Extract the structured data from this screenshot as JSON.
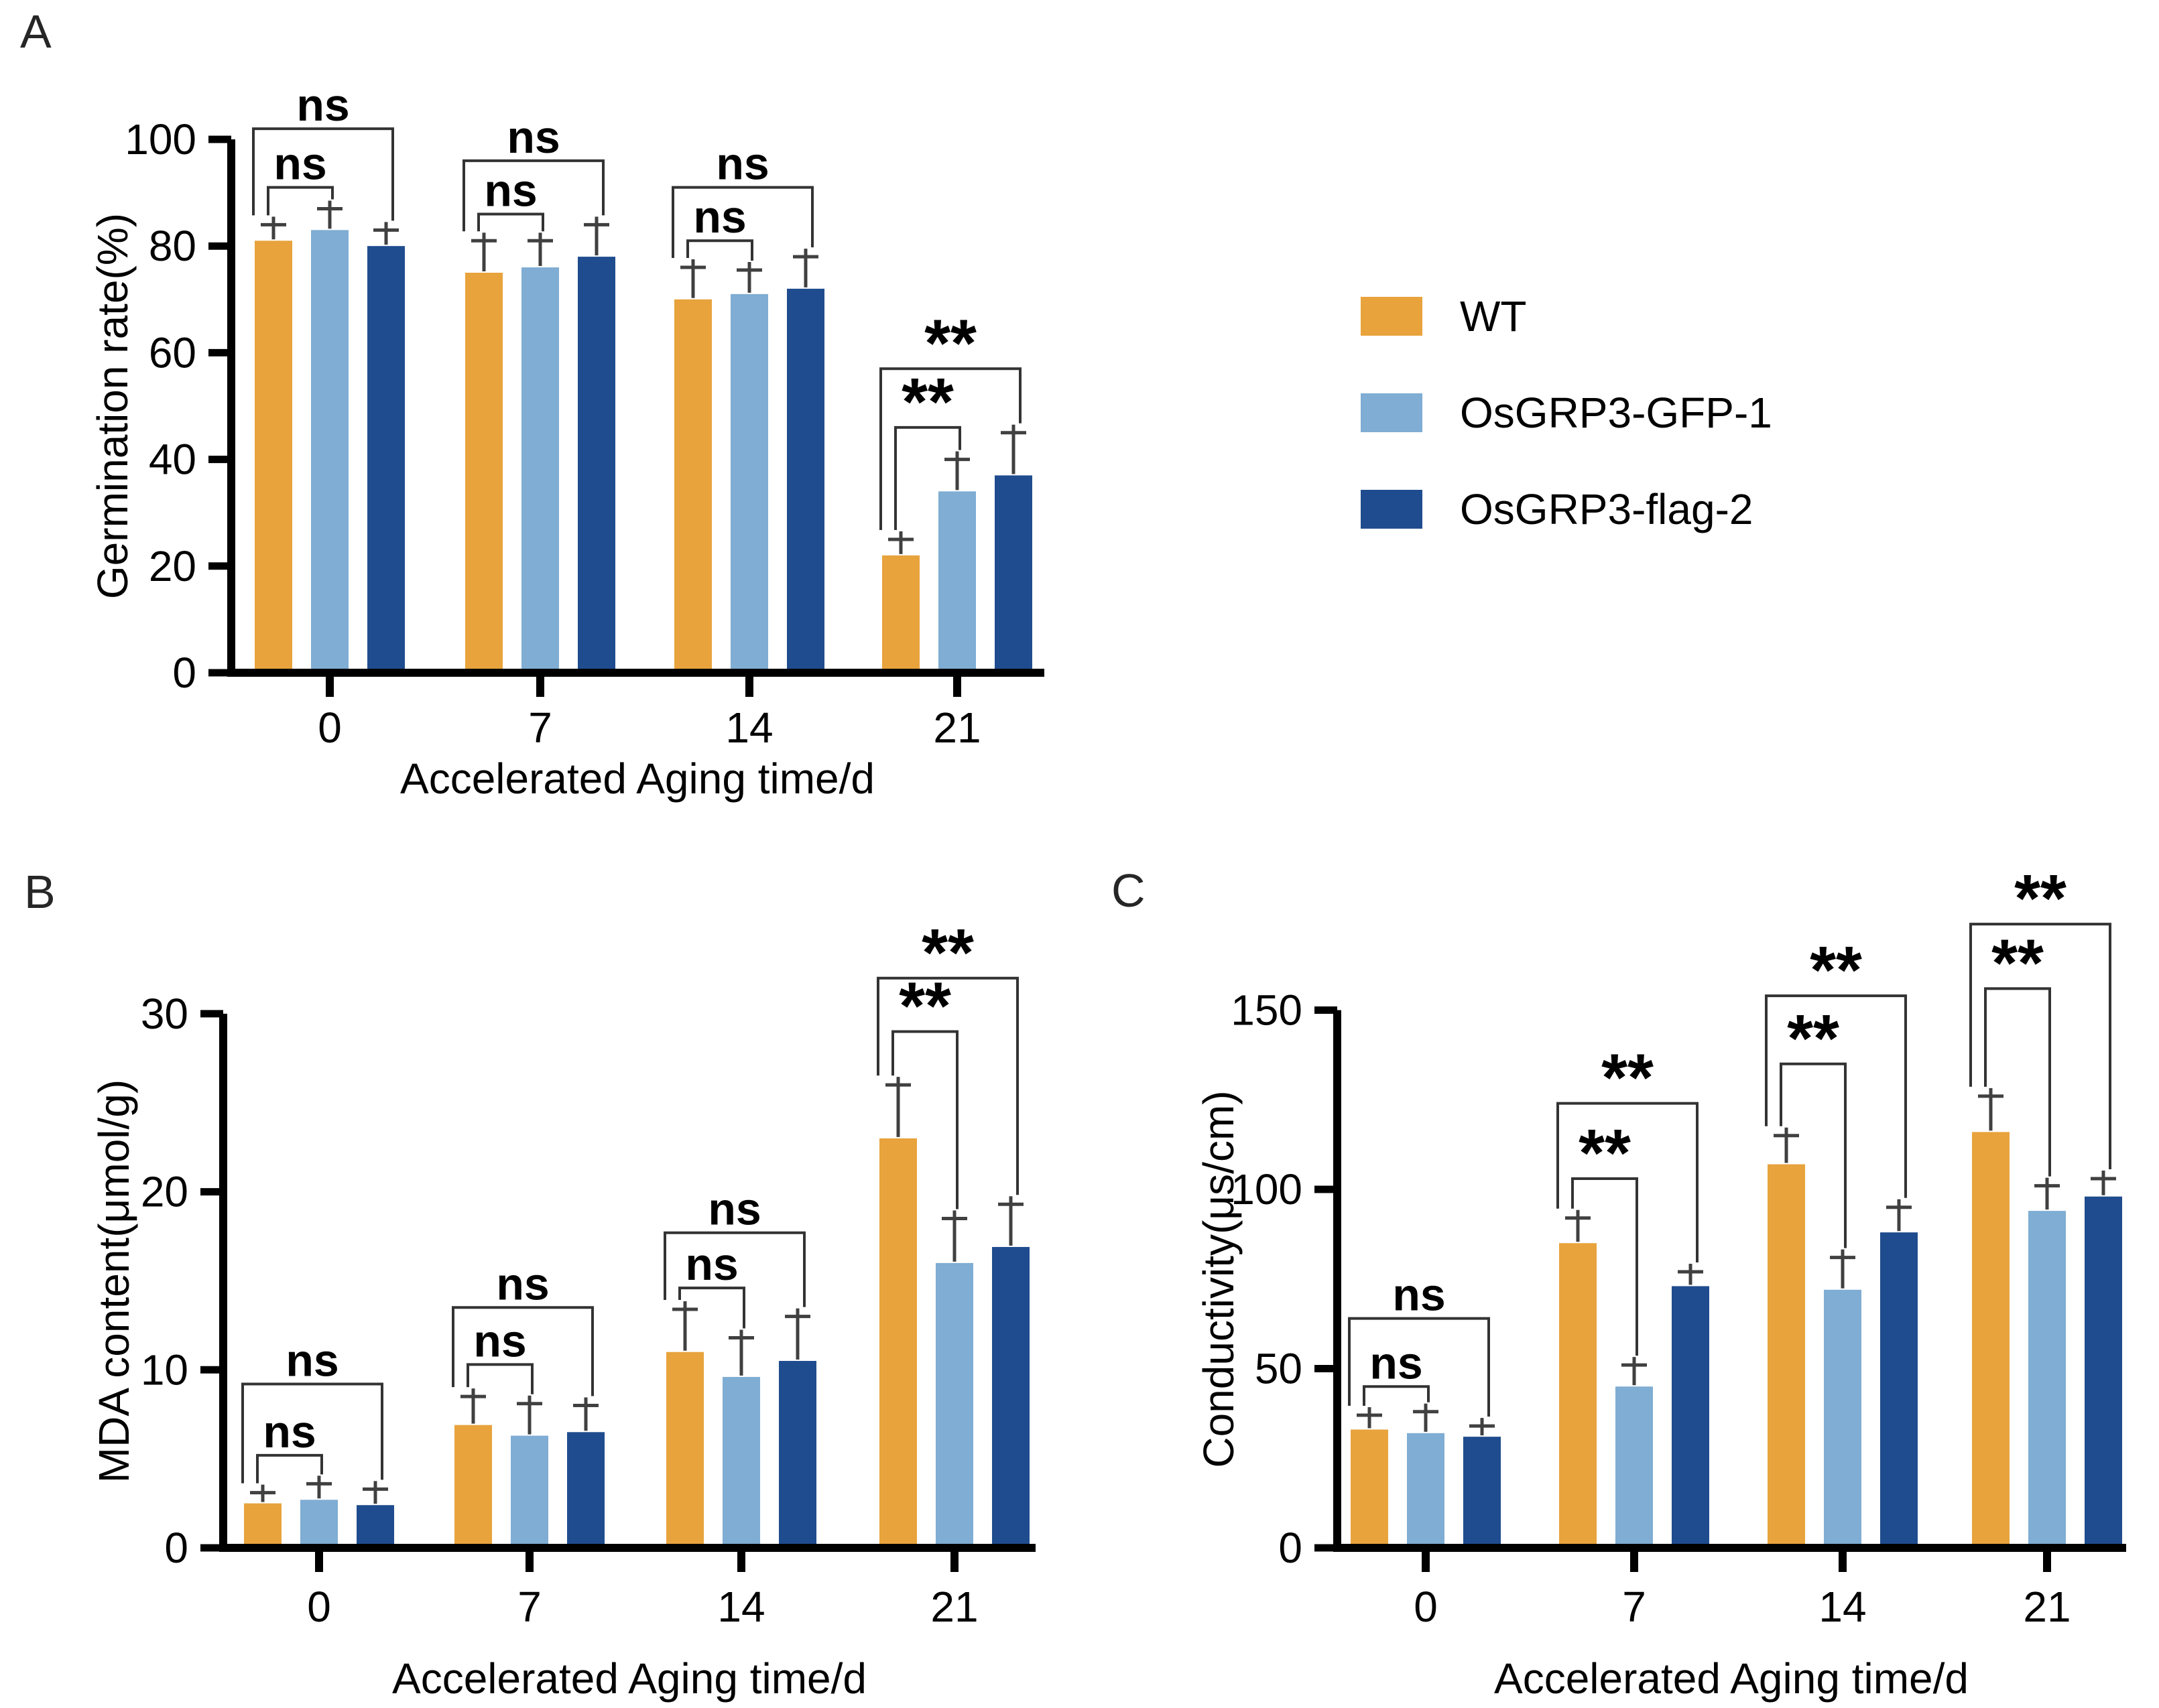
{
  "figure": {
    "panels": [
      {
        "letter": "A"
      },
      {
        "letter": "B"
      },
      {
        "letter": "C"
      }
    ]
  },
  "legend": {
    "items": [
      {
        "label": "WT",
        "color": "#E8A33C"
      },
      {
        "label": "OsGRP3-GFP-1",
        "color": "#7FADD3"
      },
      {
        "label": "OsGRP3-flag-2",
        "color": "#1F4C8E"
      }
    ]
  },
  "colors": {
    "axis": "#000000",
    "error_bar": "#404040",
    "bracket": "#333333",
    "text": "#000000"
  },
  "chart_data": [
    {
      "panel": "A",
      "type": "bar",
      "title": "",
      "xlabel": "Accelerated Aging time/d",
      "ylabel": "Germination rate(%)",
      "categories": [
        "0",
        "7",
        "14",
        "21"
      ],
      "y_ticks": [
        0,
        20,
        40,
        60,
        80,
        100
      ],
      "ylim": [
        0,
        100
      ],
      "grid": false,
      "series": [
        {
          "name": "WT",
          "values": [
            81,
            75,
            70,
            22
          ],
          "errors": [
            3,
            6,
            6,
            3
          ]
        },
        {
          "name": "OsGRP3-GFP-1",
          "values": [
            83,
            76,
            71,
            34
          ],
          "errors": [
            4,
            5,
            4.5,
            6
          ]
        },
        {
          "name": "OsGRP3-flag-2",
          "values": [
            80,
            78,
            72,
            37
          ],
          "errors": [
            3,
            6,
            6,
            8
          ]
        }
      ],
      "significance": [
        {
          "category": "0",
          "wt_vs_gfp": {
            "label": "ns",
            "line_y": 91
          },
          "wt_vs_flag": {
            "label": "ns",
            "line_y": 102
          }
        },
        {
          "category": "7",
          "wt_vs_gfp": {
            "label": "ns",
            "line_y": 86
          },
          "wt_vs_flag": {
            "label": "ns",
            "line_y": 96
          }
        },
        {
          "category": "14",
          "wt_vs_gfp": {
            "label": "ns",
            "line_y": 81
          },
          "wt_vs_flag": {
            "label": "ns",
            "line_y": 91
          }
        },
        {
          "category": "21",
          "wt_vs_gfp": {
            "label": "**",
            "line_y": 46
          },
          "wt_vs_flag": {
            "label": "**",
            "line_y": 57
          }
        }
      ]
    },
    {
      "panel": "B",
      "type": "bar",
      "title": "",
      "xlabel": "Accelerated Aging time/d",
      "ylabel": "MDA content(μmol/g)",
      "categories": [
        "0",
        "7",
        "14",
        "21"
      ],
      "y_ticks": [
        0,
        10,
        20,
        30
      ],
      "ylim": [
        0,
        30
      ],
      "grid": false,
      "series": [
        {
          "name": "WT",
          "values": [
            2.5,
            6.9,
            11,
            23
          ],
          "errors": [
            0.6,
            1.6,
            2.4,
            3
          ]
        },
        {
          "name": "OsGRP3-GFP-1",
          "values": [
            2.7,
            6.3,
            9.6,
            16
          ],
          "errors": [
            0.9,
            1.8,
            2.2,
            2.5
          ]
        },
        {
          "name": "OsGRP3-flag-2",
          "values": [
            2.4,
            6.5,
            10.5,
            16.9
          ],
          "errors": [
            0.9,
            1.5,
            2.5,
            2.4
          ]
        }
      ],
      "significance": [
        {
          "category": "0",
          "wt_vs_gfp": {
            "label": "ns",
            "line_y": 5.2
          },
          "wt_vs_flag": {
            "label": "ns",
            "line_y": 9.2
          }
        },
        {
          "category": "7",
          "wt_vs_gfp": {
            "label": "ns",
            "line_y": 10.3
          },
          "wt_vs_flag": {
            "label": "ns",
            "line_y": 13.5
          }
        },
        {
          "category": "14",
          "wt_vs_gfp": {
            "label": "ns",
            "line_y": 14.6
          },
          "wt_vs_flag": {
            "label": "ns",
            "line_y": 17.7
          }
        },
        {
          "category": "21",
          "wt_vs_gfp": {
            "label": "**",
            "line_y": 29
          },
          "wt_vs_flag": {
            "label": "**",
            "line_y": 32
          }
        }
      ]
    },
    {
      "panel": "C",
      "type": "bar",
      "title": "",
      "xlabel": "Accelerated Aging time/d",
      "ylabel": "Conductivity(μs/cm)",
      "categories": [
        "0",
        "7",
        "14",
        "21"
      ],
      "y_ticks": [
        0,
        50,
        100,
        150
      ],
      "ylim": [
        0,
        150
      ],
      "grid": false,
      "series": [
        {
          "name": "WT",
          "values": [
            33,
            85,
            107,
            116
          ],
          "errors": [
            4,
            7,
            8,
            10
          ]
        },
        {
          "name": "OsGRP3-GFP-1",
          "values": [
            32,
            45,
            72,
            94
          ],
          "errors": [
            6,
            6,
            9,
            7
          ]
        },
        {
          "name": "OsGRP3-flag-2",
          "values": [
            31,
            73,
            88,
            98
          ],
          "errors": [
            3,
            4,
            7,
            5
          ]
        }
      ],
      "significance": [
        {
          "category": "0",
          "wt_vs_gfp": {
            "label": "ns",
            "line_y": 45
          },
          "wt_vs_flag": {
            "label": "ns",
            "line_y": 64
          }
        },
        {
          "category": "7",
          "wt_vs_gfp": {
            "label": "**",
            "line_y": 103
          },
          "wt_vs_flag": {
            "label": "**",
            "line_y": 124
          }
        },
        {
          "category": "14",
          "wt_vs_gfp": {
            "label": "**",
            "line_y": 135
          },
          "wt_vs_flag": {
            "label": "**",
            "line_y": 154
          }
        },
        {
          "category": "21",
          "wt_vs_gfp": {
            "label": "**",
            "line_y": 156
          },
          "wt_vs_flag": {
            "label": "**",
            "line_y": 174
          }
        }
      ]
    }
  ]
}
